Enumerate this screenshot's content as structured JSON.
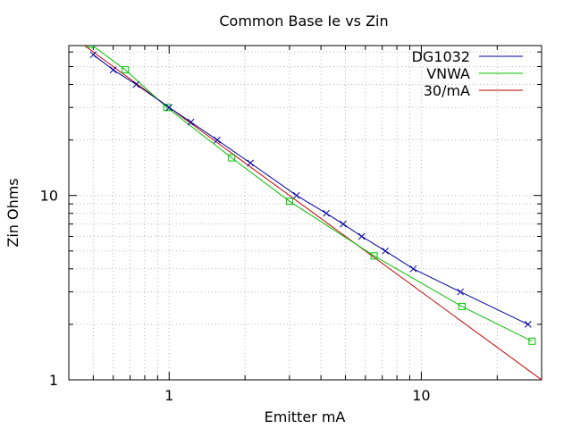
{
  "chart_data": {
    "type": "line",
    "title": "Common Base Ie vs Zin",
    "xlabel": "Emitter mA",
    "ylabel": "Zin Ohms",
    "xscale": "log",
    "yscale": "log",
    "xlim": [
      0.4,
      30
    ],
    "ylim": [
      1,
      65
    ],
    "grid": true,
    "legend_position": "top-right",
    "x_tick_labels": [
      {
        "value": 1,
        "label": "1"
      },
      {
        "value": 10,
        "label": "10"
      }
    ],
    "y_tick_labels": [
      {
        "value": 1,
        "label": "1"
      },
      {
        "value": 10,
        "label": "10"
      }
    ],
    "series": [
      {
        "name": "DG1032",
        "color": "#0000a0",
        "marker": "x",
        "x": [
          0.5,
          0.6,
          0.74,
          1.0,
          1.22,
          1.55,
          2.1,
          3.2,
          4.2,
          4.9,
          5.8,
          7.2,
          9.3,
          14.3,
          26.5
        ],
        "y": [
          58,
          48,
          40,
          30,
          25,
          20,
          15,
          10,
          8,
          7,
          6,
          5,
          4,
          3,
          2
        ]
      },
      {
        "name": "VNWA",
        "color": "#00c000",
        "marker": "square",
        "x": [
          0.49,
          0.67,
          0.98,
          1.77,
          3.0,
          6.5,
          14.5,
          27.5
        ],
        "y": [
          66,
          48,
          30,
          16,
          9.3,
          4.7,
          2.5,
          1.62
        ]
      },
      {
        "name": "30/mA",
        "color": "#c00000",
        "marker": "none",
        "formula": "30/x",
        "x": [
          0.45,
          30
        ],
        "y": [
          66.7,
          1.0
        ]
      }
    ]
  }
}
